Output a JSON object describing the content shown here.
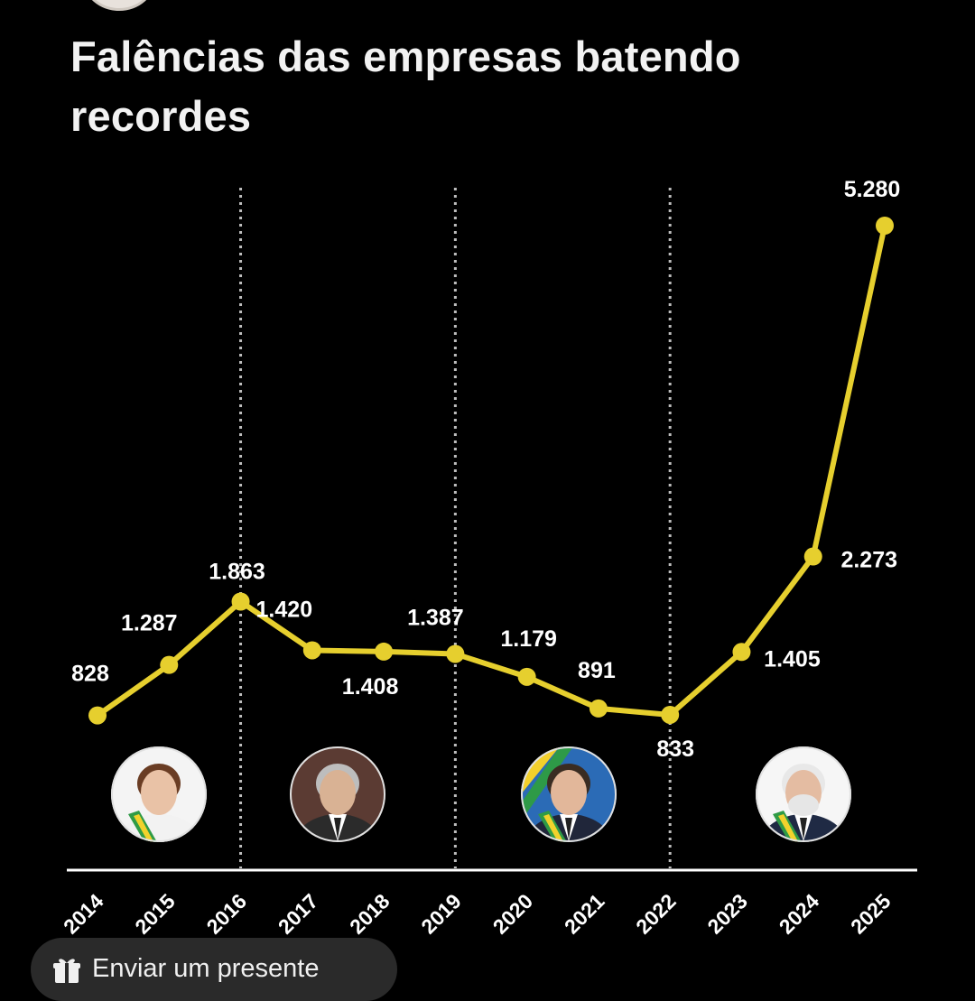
{
  "title": "Falências das empresas batendo recordes",
  "colors": {
    "background": "#000000",
    "line": "#e6cf2e",
    "text": "#ffffff",
    "divider": "#bdbdbd"
  },
  "chart_data": {
    "type": "line",
    "title": "Falências das empresas batendo recordes",
    "x": [
      "2014",
      "2015",
      "2016",
      "2017",
      "2018",
      "2019",
      "2020",
      "2021",
      "2022",
      "2023",
      "2024",
      "2025"
    ],
    "series": [
      {
        "values": [
          828,
          1287,
          1863,
          1420,
          1408,
          1387,
          1179,
          891,
          833,
          1405,
          2273,
          5280
        ]
      }
    ],
    "data_labels": [
      "828",
      "1.287",
      "1.863",
      "1.420",
      "1.408",
      "1.387",
      "1.179",
      "891",
      "833",
      "1.405",
      "2.273",
      "5.280"
    ],
    "ylim": [
      0,
      5500
    ],
    "grid": false,
    "period_dividers_after": [
      "2016",
      "2019",
      "2022"
    ],
    "portrait_icons": [
      "portrait-president-1-icon",
      "portrait-president-2-icon",
      "portrait-president-3-icon",
      "portrait-president-4-icon"
    ]
  },
  "footer": {
    "gift_label": "Enviar um presente",
    "gift_icon": "gift-icon"
  }
}
